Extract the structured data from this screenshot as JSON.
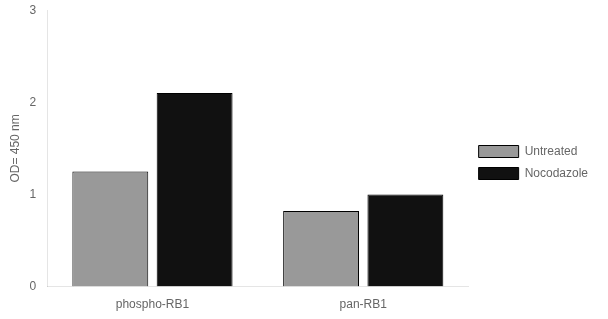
{
  "chart_data": {
    "type": "bar",
    "categories": [
      "phospho-RB1",
      "pan-RB1"
    ],
    "series": [
      {
        "name": "Untreated",
        "color": "#999999",
        "values": [
          1.25,
          0.82
        ]
      },
      {
        "name": "Nocodazole",
        "color": "#111111",
        "values": [
          2.1,
          1.0
        ]
      }
    ],
    "ylabel": "OD= 450 nm",
    "ylim": [
      0,
      3
    ],
    "yticks": [
      0,
      1,
      2,
      3
    ],
    "grid": false,
    "legend": "right"
  }
}
